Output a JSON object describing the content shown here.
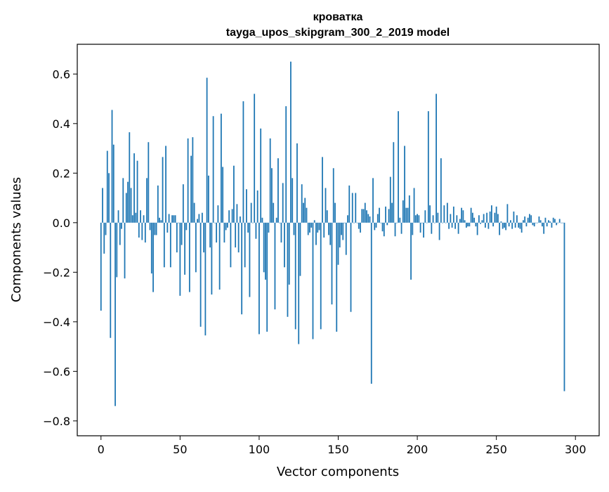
{
  "chart_data": {
    "type": "bar",
    "title_line1": "кроватка",
    "title_line2": "tayga_upos_skipgram_300_2_2019 model",
    "xlabel": "Vector components",
    "ylabel": "Components values",
    "xlim": [
      -15,
      315
    ],
    "ylim": [
      -0.86,
      0.72
    ],
    "x_ticks": [
      0,
      50,
      100,
      150,
      200,
      250,
      300
    ],
    "x_tick_labels": [
      "0",
      "50",
      "100",
      "150",
      "200",
      "250",
      "300"
    ],
    "y_ticks": [
      -0.8,
      -0.6,
      -0.4,
      -0.2,
      0.0,
      0.2,
      0.4,
      0.6
    ],
    "y_tick_labels": [
      "−0.8",
      "−0.6",
      "−0.4",
      "−0.2",
      "0.0",
      "0.2",
      "0.4",
      "0.6"
    ],
    "bar_color": "#1f77b4",
    "values": [
      -0.355,
      0.14,
      -0.125,
      -0.05,
      0.29,
      0.2,
      -0.465,
      0.455,
      0.315,
      -0.74,
      -0.22,
      0.05,
      -0.09,
      -0.025,
      0.18,
      -0.225,
      0.12,
      0.165,
      0.365,
      0.14,
      0.03,
      0.28,
      0.04,
      0.25,
      -0.06,
      0.05,
      -0.07,
      0.03,
      -0.08,
      0.18,
      0.325,
      -0.03,
      -0.205,
      -0.28,
      -0.05,
      -0.05,
      0.15,
      0.02,
      0.01,
      0.265,
      -0.18,
      0.31,
      -0.04,
      0.035,
      -0.18,
      0.03,
      0.03,
      0.03,
      -0.12,
      0.0,
      -0.295,
      -0.09,
      0.155,
      -0.21,
      -0.03,
      0.34,
      -0.28,
      0.27,
      0.345,
      0.08,
      -0.2,
      0.015,
      0.035,
      -0.42,
      0.04,
      -0.12,
      -0.455,
      0.585,
      0.19,
      -0.1,
      -0.29,
      0.43,
      0.0,
      -0.08,
      0.07,
      -0.27,
      0.44,
      0.225,
      -0.08,
      -0.03,
      -0.02,
      0.05,
      -0.18,
      0.055,
      0.23,
      -0.1,
      0.075,
      -0.12,
      0.025,
      -0.37,
      0.49,
      -0.18,
      0.135,
      -0.04,
      -0.3,
      0.08,
      0.0,
      0.52,
      -0.065,
      0.13,
      -0.45,
      0.38,
      0.02,
      -0.2,
      -0.23,
      -0.44,
      -0.04,
      0.34,
      0.22,
      0.08,
      -0.35,
      0.02,
      0.26,
      0.0,
      -0.08,
      0.16,
      -0.18,
      0.47,
      -0.38,
      -0.25,
      0.65,
      0.18,
      -0.05,
      -0.43,
      0.32,
      -0.49,
      -0.215,
      0.155,
      0.08,
      0.1,
      0.06,
      -0.05,
      -0.04,
      -0.02,
      -0.47,
      0.01,
      -0.09,
      -0.04,
      -0.03,
      -0.43,
      0.265,
      -0.06,
      0.14,
      0.05,
      -0.05,
      -0.09,
      -0.33,
      0.22,
      0.08,
      -0.44,
      -0.17,
      -0.1,
      -0.05,
      -0.07,
      0.0,
      -0.13,
      0.03,
      0.15,
      -0.36,
      0.12,
      0.0,
      0.12,
      0.0,
      -0.025,
      -0.04,
      0.055,
      0.055,
      0.08,
      0.05,
      0.035,
      0.025,
      -0.65,
      0.18,
      -0.03,
      -0.02,
      0.035,
      0.06,
      0.0,
      -0.035,
      -0.055,
      0.065,
      -0.01,
      0.055,
      0.185,
      0.08,
      0.325,
      -0.055,
      0.0,
      0.45,
      0.02,
      -0.045,
      0.09,
      0.31,
      0.06,
      0.06,
      0.11,
      -0.23,
      -0.05,
      0.14,
      0.03,
      0.035,
      0.03,
      -0.04,
      0.0,
      -0.06,
      0.05,
      0.0,
      0.45,
      0.07,
      -0.045,
      0.03,
      0.0,
      0.52,
      0.04,
      -0.07,
      0.26,
      0.0,
      0.07,
      0.0,
      0.08,
      -0.025,
      0.035,
      -0.02,
      0.065,
      -0.025,
      0.03,
      -0.045,
      0.015,
      0.06,
      0.05,
      0.01,
      -0.02,
      -0.015,
      -0.015,
      0.06,
      0.04,
      0.02,
      -0.015,
      -0.05,
      0.03,
      -0.005,
      0.01,
      0.035,
      -0.02,
      0.04,
      -0.025,
      0.045,
      0.07,
      -0.015,
      0.04,
      0.065,
      0.035,
      -0.05,
      0.005,
      -0.025,
      -0.02,
      -0.03,
      0.075,
      -0.015,
      0.01,
      -0.025,
      0.045,
      -0.02,
      0.03,
      -0.02,
      -0.025,
      -0.04,
      0.01,
      0.025,
      -0.015,
      0.02,
      0.035,
      0.03,
      -0.01,
      -0.015,
      0.0,
      0.0,
      0.025,
      0.01,
      -0.015,
      -0.045,
      0.02,
      -0.015,
      0.01,
      0.005,
      -0.02,
      0.02,
      0.015,
      -0.01,
      0.0,
      0.015,
      0.0,
      0.0,
      -0.68
    ]
  }
}
